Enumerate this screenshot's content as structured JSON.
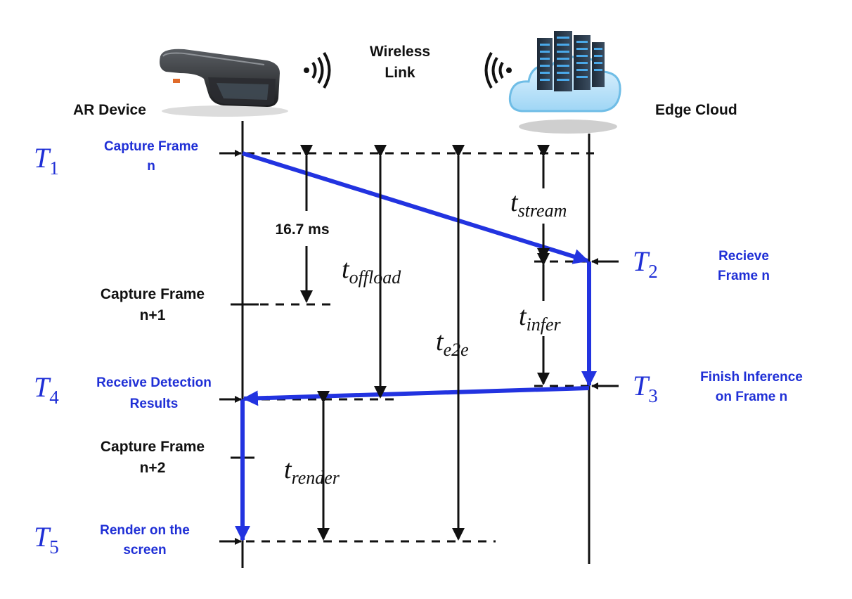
{
  "header": {
    "ar_device": "AR Device",
    "wireless_link_line1": "Wireless",
    "wireless_link_line2": "Link",
    "edge_cloud": "Edge Cloud"
  },
  "events": {
    "T1": {
      "mark": "T",
      "sub": "1",
      "line1": "Capture Frame",
      "line2": "n"
    },
    "T2": {
      "mark": "T",
      "sub": "2",
      "line1": "Recieve",
      "line2": "Frame n"
    },
    "T3": {
      "mark": "T",
      "sub": "3",
      "line1": "Finish Inference",
      "line2": "on Frame n"
    },
    "T4": {
      "mark": "T",
      "sub": "4",
      "line1": "Receive Detection",
      "line2": "Results"
    },
    "T5": {
      "mark": "T",
      "sub": "5",
      "line1": "Render on the",
      "line2": "screen"
    }
  },
  "captures": {
    "n1": {
      "line1": "Capture Frame",
      "line2": "n+1"
    },
    "n2": {
      "line1": "Capture Frame",
      "line2": "n+2"
    }
  },
  "intervals": {
    "frame": "16.7 ms",
    "stream": {
      "base": "t",
      "sub": "stream"
    },
    "offload": {
      "base": "t",
      "sub": "offload"
    },
    "e2e": {
      "base": "t",
      "sub": "e2e"
    },
    "infer": {
      "base": "t",
      "sub": "infer"
    },
    "render": {
      "base": "t",
      "sub": "render"
    }
  },
  "colors": {
    "accent_blue": "#1f2fd6",
    "flow_blue": "#2233e0",
    "line": "#111111"
  },
  "icons": [
    "ar-headset-icon",
    "wireless-signal-right-icon",
    "wireless-signal-left-icon",
    "server-cloud-icon"
  ]
}
